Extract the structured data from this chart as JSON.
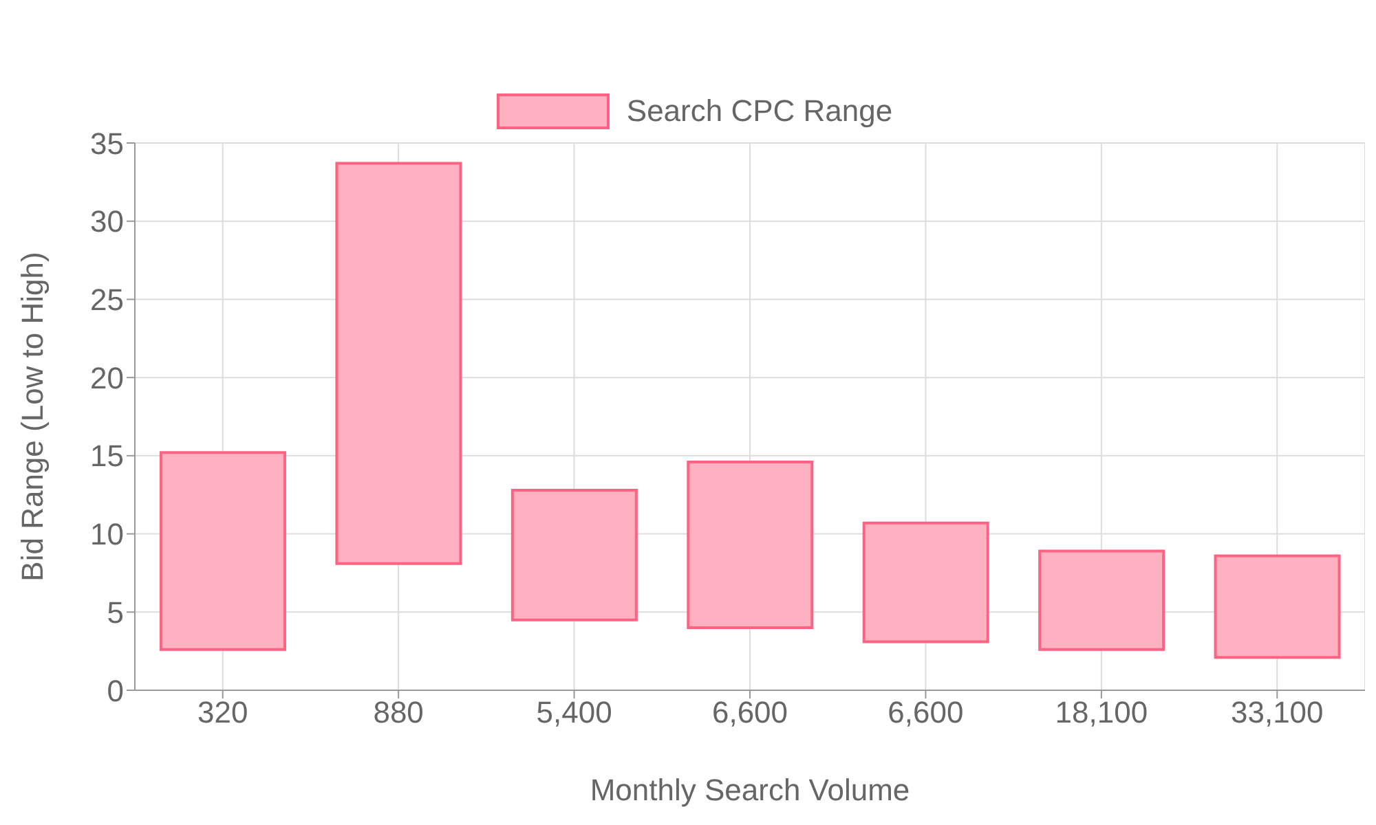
{
  "chart_data": {
    "type": "bar",
    "xlabel": "Monthly Search Volume",
    "ylabel": "Bid Range (Low to High)",
    "categories": [
      "320",
      "880",
      "5,400",
      "6,600",
      "6,600",
      "18,100",
      "33,100"
    ],
    "series": [
      {
        "name": "Search CPC Range",
        "color": "#ffb1c1",
        "base": [
          2.6,
          8.1,
          4.5,
          4.0,
          3.1,
          2.6,
          2.1
        ],
        "values": [
          12.6,
          25.6,
          8.3,
          10.6,
          7.6,
          6.3,
          6.5
        ]
      }
    ],
    "ylim": [
      0,
      35
    ],
    "yticks": [
      0,
      5,
      10,
      15,
      20,
      25,
      30,
      35
    ],
    "grid": true,
    "legend": "top"
  }
}
